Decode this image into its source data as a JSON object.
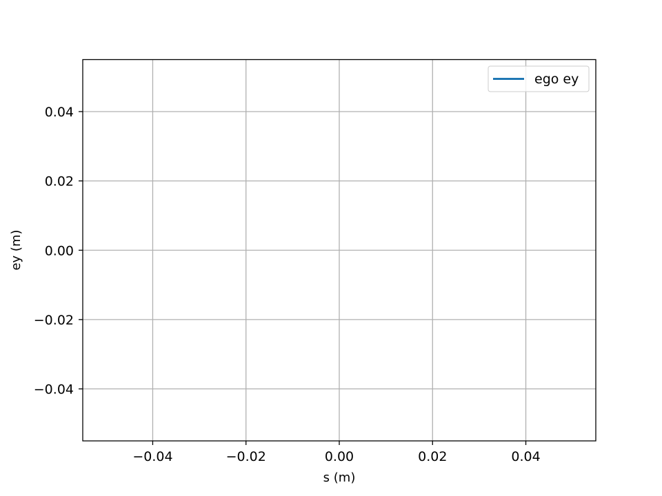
{
  "chart_data": {
    "type": "line",
    "xlabel": "s (m)",
    "ylabel": "ey (m)",
    "xlim": [
      -0.055,
      0.055
    ],
    "ylim": [
      -0.055,
      0.055
    ],
    "x_ticks": [
      -0.04,
      -0.02,
      0.0,
      0.02,
      0.04
    ],
    "y_ticks": [
      -0.04,
      -0.02,
      0.0,
      0.02,
      0.04
    ],
    "x_tick_labels": [
      "−0.04",
      "−0.02",
      "0.00",
      "0.02",
      "0.04"
    ],
    "y_tick_labels": [
      "−0.04",
      "−0.02",
      "0.00",
      "0.02",
      "0.04"
    ],
    "grid": true,
    "legend_position": "top-right",
    "series": [
      {
        "name": "ego ey",
        "color": "#1f77b4",
        "x": [],
        "y": []
      }
    ]
  }
}
